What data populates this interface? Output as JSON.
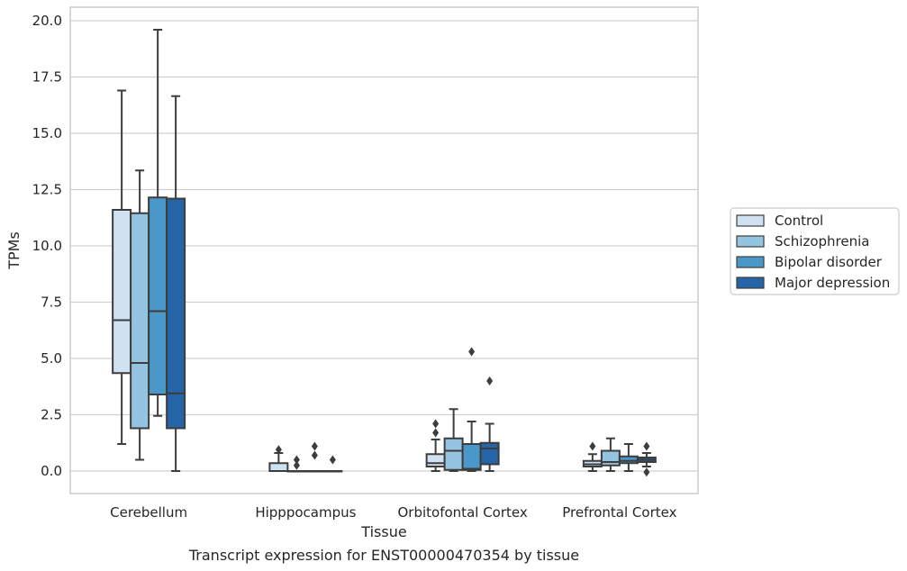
{
  "chart_data": {
    "type": "boxplot",
    "title": "",
    "caption": "Transcript expression for ENST00000470354 by tissue",
    "xlabel": "Tissue",
    "ylabel": "TPMs",
    "ylim": [
      -1.0,
      20.6
    ],
    "yticks": [
      0.0,
      2.5,
      5.0,
      7.5,
      10.0,
      12.5,
      15.0,
      17.5,
      20.0
    ],
    "ytick_labels": [
      "0.0",
      "2.5",
      "5.0",
      "7.5",
      "10.0",
      "12.5",
      "15.0",
      "17.5",
      "20.0"
    ],
    "grid": "horizontal",
    "legend_position": "right",
    "categories": [
      "Cerebellum",
      "Hipppocampus",
      "Orbitofontal Cortex",
      "Prefrontal Cortex"
    ],
    "series": [
      {
        "name": "Control",
        "color": "#d0e1f2",
        "boxes": [
          {
            "whislo": 1.2,
            "q1": 4.35,
            "med": 6.7,
            "q3": 11.6,
            "whishi": 16.9,
            "fliers": []
          },
          {
            "whislo": 0.0,
            "q1": 0.0,
            "med": 0.0,
            "q3": 0.35,
            "whishi": 0.8,
            "fliers": [
              0.95
            ]
          },
          {
            "whislo": 0.0,
            "q1": 0.2,
            "med": 0.35,
            "q3": 0.75,
            "whishi": 1.4,
            "fliers": [
              1.7,
              2.1
            ]
          },
          {
            "whislo": 0.0,
            "q1": 0.2,
            "med": 0.3,
            "q3": 0.45,
            "whishi": 0.75,
            "fliers": [
              1.1
            ]
          }
        ]
      },
      {
        "name": "Schizophrenia",
        "color": "#94c4df",
        "boxes": [
          {
            "whislo": 0.5,
            "q1": 1.9,
            "med": 4.8,
            "q3": 11.45,
            "whishi": 13.35,
            "fliers": []
          },
          {
            "whislo": 0.0,
            "q1": 0.0,
            "med": 0.0,
            "q3": 0.0,
            "whishi": 0.0,
            "fliers": [
              0.25,
              0.5
            ]
          },
          {
            "whislo": 0.0,
            "q1": 0.05,
            "med": 0.9,
            "q3": 1.45,
            "whishi": 2.75,
            "fliers": []
          },
          {
            "whislo": 0.0,
            "q1": 0.25,
            "med": 0.4,
            "q3": 0.9,
            "whishi": 1.45,
            "fliers": []
          }
        ]
      },
      {
        "name": "Bipolar disorder",
        "color": "#4a98c9",
        "boxes": [
          {
            "whislo": 2.45,
            "q1": 3.4,
            "med": 7.1,
            "q3": 12.15,
            "whishi": 19.6,
            "fliers": []
          },
          {
            "whislo": 0.0,
            "q1": 0.0,
            "med": 0.0,
            "q3": 0.0,
            "whishi": 0.0,
            "fliers": [
              0.7,
              1.1
            ]
          },
          {
            "whislo": 0.0,
            "q1": 0.05,
            "med": 0.1,
            "q3": 1.2,
            "whishi": 2.2,
            "fliers": [
              5.3
            ]
          },
          {
            "whislo": 0.0,
            "q1": 0.35,
            "med": 0.45,
            "q3": 0.65,
            "whishi": 1.2,
            "fliers": []
          }
        ]
      },
      {
        "name": "Major depression",
        "color": "#2464a7",
        "boxes": [
          {
            "whislo": 0.0,
            "q1": 1.9,
            "med": 3.45,
            "q3": 12.1,
            "whishi": 16.65,
            "fliers": []
          },
          {
            "whislo": 0.0,
            "q1": 0.0,
            "med": 0.0,
            "q3": 0.0,
            "whishi": 0.0,
            "fliers": [
              0.5
            ]
          },
          {
            "whislo": 0.0,
            "q1": 0.3,
            "med": 1.0,
            "q3": 1.25,
            "whishi": 2.1,
            "fliers": [
              4.0
            ]
          },
          {
            "whislo": 0.2,
            "q1": 0.4,
            "med": 0.5,
            "q3": 0.6,
            "whishi": 0.8,
            "fliers": [
              -0.05,
              1.1
            ]
          }
        ]
      }
    ]
  }
}
